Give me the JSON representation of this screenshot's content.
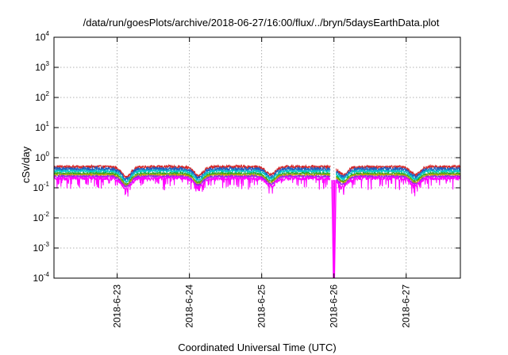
{
  "chart_data": {
    "type": "line",
    "title": "/data/run/goesPlots/archive/2018-06-27/16:00/flux/../bryn/5daysEarthData.plot",
    "xlabel": "Coordinated Universal Time (UTC)",
    "ylabel": "cSv/day",
    "y_scale": "log",
    "ylim": [
      0.0001,
      10000
    ],
    "y_ticks": [
      {
        "base": "10",
        "exp": "-4",
        "value": 0.0001
      },
      {
        "base": "10",
        "exp": "-3",
        "value": 0.001
      },
      {
        "base": "10",
        "exp": "-2",
        "value": 0.01
      },
      {
        "base": "10",
        "exp": "-1",
        "value": 0.1
      },
      {
        "base": "10",
        "exp": "0",
        "value": 1
      },
      {
        "base": "10",
        "exp": "1",
        "value": 10
      },
      {
        "base": "10",
        "exp": "2",
        "value": 100
      },
      {
        "base": "10",
        "exp": "3",
        "value": 1000
      },
      {
        "base": "10",
        "exp": "4",
        "value": 10000
      }
    ],
    "xlim": [
      "2018-06-22T03:00",
      "2018-06-27T18:00"
    ],
    "x_ticks": [
      {
        "label": "2018-6-23",
        "date": "2018-06-23T00:00"
      },
      {
        "label": "2018-6-24",
        "date": "2018-06-24T00:00"
      },
      {
        "label": "2018-6-25",
        "date": "2018-06-25T00:00"
      },
      {
        "label": "2018-6-26",
        "date": "2018-06-26T00:00"
      },
      {
        "label": "2018-6-27",
        "date": "2018-06-27T00:00"
      }
    ],
    "grid": true,
    "gap": {
      "start": "2018-06-25T22:45",
      "end": "2018-06-26T00:45"
    },
    "data_gap": {
      "start": "2018-06-25T23:50",
      "end": "2018-06-26T00:10",
      "low_series": "magenta",
      "low_value": 0.0001
    },
    "dips": [
      {
        "date": "2018-06-23T03:00",
        "depth": 0.55
      },
      {
        "date": "2018-06-24T03:00",
        "depth": 0.5
      },
      {
        "date": "2018-06-25T03:00",
        "depth": 0.45
      },
      {
        "date": "2018-06-26T03:00",
        "depth": 0.45
      },
      {
        "date": "2018-06-27T03:00",
        "depth": 0.45
      }
    ],
    "series": [
      {
        "color": "#d62728",
        "level": 0.5,
        "noise": 0.12
      },
      {
        "color": "#1f5fbf",
        "level": 0.42,
        "noise": 0.16
      },
      {
        "color": "#00c8c8",
        "level": 0.36,
        "noise": 0.1
      },
      {
        "color": "#22aa22",
        "level": 0.3,
        "noise": 0.08
      },
      {
        "color": "#c8a000",
        "level": 0.27,
        "noise": 0.06
      },
      {
        "color": "#8a2be2",
        "level": 0.24,
        "noise": 0.08
      },
      {
        "color": "#ff00ff",
        "level": 0.21,
        "noise": 0.15
      }
    ]
  }
}
